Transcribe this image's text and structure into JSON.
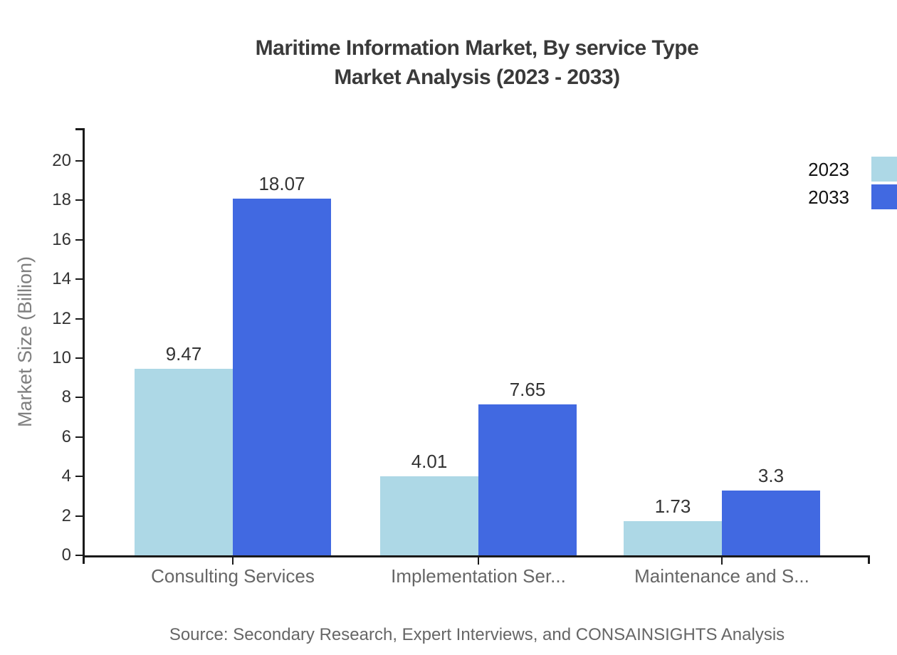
{
  "title": {
    "line1": "Maritime Information Market, By service Type",
    "line2": "Market Analysis (2023 - 2033)"
  },
  "source": "Source: Secondary Research, Expert Interviews, and CONSAINSIGHTS Analysis",
  "chart_data": {
    "type": "bar",
    "title": "Maritime Information Market, By service Type Market Analysis (2023 - 2033)",
    "categories": [
      "Consulting Services",
      "Implementation Ser...",
      "Maintenance and S..."
    ],
    "series": [
      {
        "name": "2023",
        "color": "#ADD8E6",
        "values": [
          9.47,
          4.01,
          1.73
        ]
      },
      {
        "name": "2033",
        "color": "#4169E1",
        "values": [
          18.07,
          7.65,
          3.3
        ]
      }
    ],
    "xlabel": "",
    "ylabel": "Market Size (Billion)",
    "ylim": [
      0,
      20
    ],
    "ytick_step": 2,
    "grid": false,
    "legend_position": "top-right",
    "value_labels_shown": true
  },
  "colors": {
    "background": "#ffffff",
    "axis": "#1a1a1a",
    "title_text": "#3a3a3a",
    "tick_label": "#333333",
    "value_label": "#333333",
    "category_label": "#666666",
    "y_axis_title": "#7f7f7f",
    "source_text": "#666666",
    "legend_text": "#111111",
    "series_2023": "#ADD8E6",
    "series_2033": "#4169E1"
  }
}
